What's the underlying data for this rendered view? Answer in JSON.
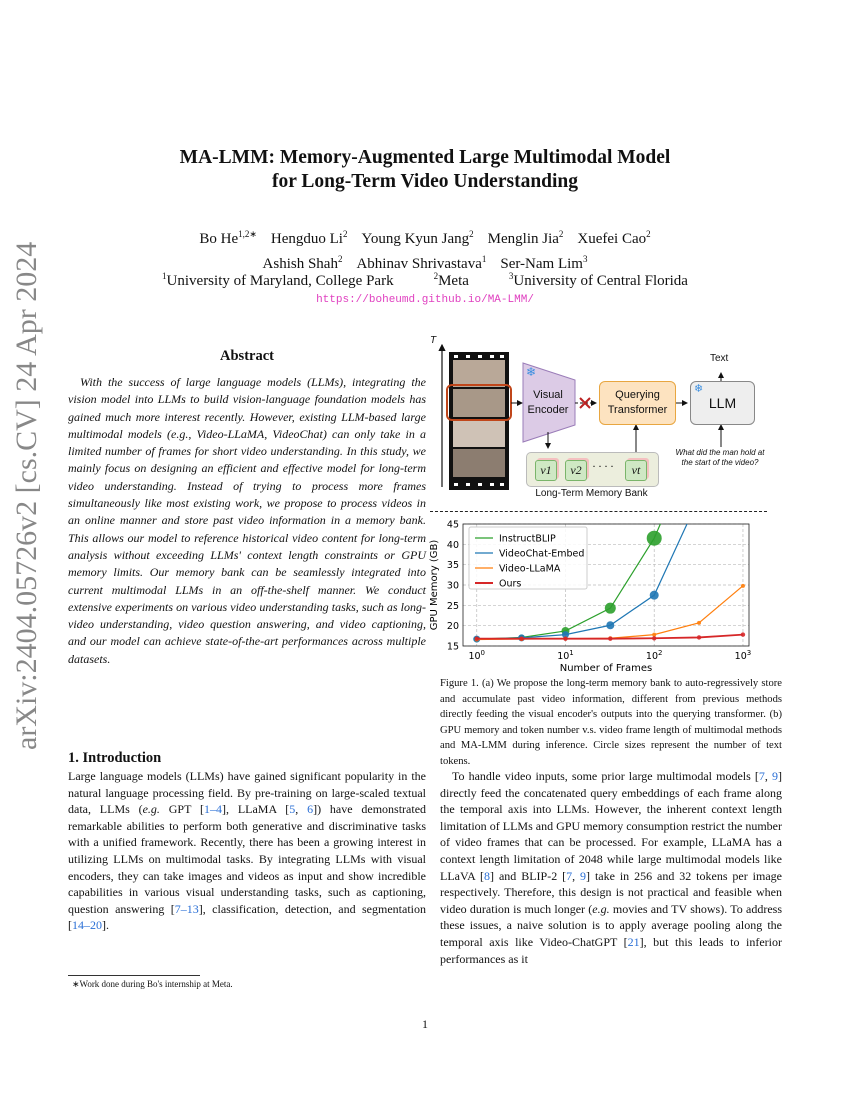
{
  "stamp": "arXiv:2404.05726v2  [cs.CV]  24 Apr 2024",
  "title": {
    "line1": "MA-LMM: Memory-Augmented Large Multimodal Model",
    "line2": "for Long-Term Video Understanding"
  },
  "authors": {
    "row1": [
      {
        "name": "Bo He",
        "sup": "1,2∗"
      },
      {
        "name": "Hengduo Li",
        "sup": "2"
      },
      {
        "name": "Young Kyun Jang",
        "sup": "2"
      },
      {
        "name": "Menglin Jia",
        "sup": "2"
      },
      {
        "name": "Xuefei Cao",
        "sup": "2"
      }
    ],
    "row2": [
      {
        "name": "Ashish Shah",
        "sup": "2"
      },
      {
        "name": "Abhinav Shrivastava",
        "sup": "1"
      },
      {
        "name": "Ser-Nam Lim",
        "sup": "3"
      }
    ]
  },
  "affiliations": [
    {
      "sup": "1",
      "name": "University of Maryland, College Park"
    },
    {
      "sup": "2",
      "name": "Meta"
    },
    {
      "sup": "3",
      "name": "University of Central Florida"
    }
  ],
  "url": "https://boheumd.github.io/MA-LMM/",
  "abstract": {
    "heading": "Abstract",
    "text": "With the success of large language models (LLMs), integrating the vision model into LLMs to build vision-language foundation models has gained much more interest recently. However, existing LLM-based large multimodal models (e.g., Video-LLaMA, VideoChat) can only take in a limited number of frames for short video understanding. In this study, we mainly focus on designing an efficient and effective model for long-term video understanding. Instead of trying to process more frames simultaneously like most existing work, we propose to process videos in an online manner and store past video information in a memory bank. This allows our model to reference historical video content for long-term analysis without exceeding LLMs' context length constraints or GPU memory limits. Our memory bank can be seamlessly integrated into current multimodal LLMs in an off-the-shelf manner. We conduct extensive experiments on various video understanding tasks, such as long-video understanding, video question answering, and video captioning, and our model can achieve state-of-the-art performances across multiple datasets."
  },
  "intro": {
    "heading": "1. Introduction",
    "p1": [
      "Large language models (LLMs) have gained significant popularity in the natural language processing field. By pre-training on large-scaled textual data, LLMs (",
      {
        "i": "e.g."
      },
      " GPT [",
      {
        "c": "1–4"
      },
      "], LLaMA [",
      {
        "c": "5"
      },
      ", ",
      {
        "c": "6"
      },
      "]) have demonstrated remarkable abilities to perform both generative and discriminative tasks with a unified framework. Recently, there has been a growing interest in utilizing LLMs on multimodal tasks. By integrating LLMs with visual encoders, they can take images and videos as input and show incredible capabilities in various visual understanding tasks, such as captioning, question answering [",
      {
        "c": "7–13"
      },
      "], classification, detection, and segmentation [",
      {
        "c": "14–20"
      },
      "]."
    ],
    "p2": [
      "To handle video inputs, some prior large multimodal models [",
      {
        "c": "7"
      },
      ", ",
      {
        "c": "9"
      },
      "] directly feed the concatenated query embeddings of each frame along the temporal axis into LLMs. However, the inherent context length limitation of LLMs and GPU memory consumption restrict the number of video frames that can be processed. For example, LLaMA has a context length limitation of 2048 while large multimodal models like LLaVA [",
      {
        "c": "8"
      },
      "] and BLIP-2 [",
      {
        "c": "7"
      },
      ", ",
      {
        "c": "9"
      },
      "] take in 256 and 32 tokens per image respectively. Therefore, this design is not practical and feasible when video duration is much longer (",
      {
        "i": "e.g."
      },
      " movies and TV shows). To address these issues, a naive solution is to apply average pooling along the temporal axis like Video-ChatGPT [",
      {
        "c": "21"
      },
      "], but this leads to inferior performances as it"
    ]
  },
  "footnote": "∗Work done during Bo's internship at Meta.",
  "page_number": "1",
  "figure": {
    "axis_label": "T",
    "visual_encoder": "Visual Encoder",
    "querying_transformer": "Querying Transformer",
    "llm": "LLM",
    "text_output": "Text",
    "question": "What did the man hold at the start of the video?",
    "memory_bank": "Long-Term Memory Bank",
    "memory_items": [
      "v1",
      "v2",
      "vt"
    ],
    "icons": [
      "snowflake-icon",
      "cross-icon"
    ],
    "caption": "Figure 1. (a) We propose the long-term memory bank to auto-regressively store and accumulate past video information, different from previous methods directly feeding the visual encoder's outputs into the querying transformer. (b) GPU memory and token number v.s. video frame length of multimodal methods and MA-LMM during inference. Circle sizes represent the number of text tokens."
  },
  "chart_data": {
    "type": "line",
    "xlabel": "Number of Frames",
    "ylabel": "GPU Memory (GB)",
    "xscale": "log",
    "xlim": [
      0.7,
      1170
    ],
    "ylim": [
      15,
      45
    ],
    "xticks": [
      "10^0",
      "10^1",
      "10^2",
      "10^3"
    ],
    "yticks": [
      15,
      20,
      25,
      30,
      35,
      40,
      45
    ],
    "grid": true,
    "legend": "top-left",
    "x": [
      1,
      3.2,
      10,
      32,
      100,
      320,
      1000
    ],
    "series": [
      {
        "name": "InstructBLIP",
        "color": "#2ca02c",
        "values": [
          16.7,
          17.1,
          18.7,
          24.3,
          41.5,
          null,
          null
        ],
        "exits_top_at": 120
      },
      {
        "name": "VideoChat-Embed",
        "color": "#1f77b4",
        "values": [
          16.7,
          17.0,
          17.8,
          20.1,
          27.5,
          null,
          null
        ],
        "exits_top_at": 240
      },
      {
        "name": "Video-LLaMA",
        "color": "#ff7f0e",
        "values": [
          16.6,
          16.7,
          16.8,
          16.9,
          17.8,
          20.7,
          29.8
        ]
      },
      {
        "name": "Ours",
        "color": "#d62728",
        "values": [
          16.8,
          16.8,
          16.8,
          16.8,
          16.9,
          17.1,
          17.8
        ]
      }
    ]
  }
}
